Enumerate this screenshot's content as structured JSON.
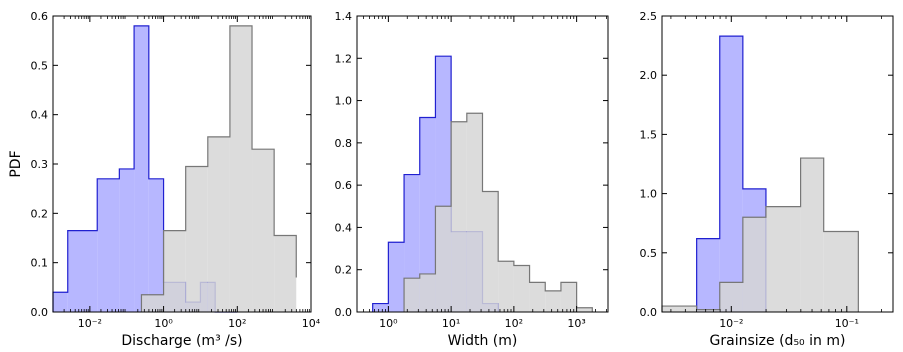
{
  "chart_data": [
    {
      "type": "histogram",
      "ylabel": "PDF",
      "xlabel": "Discharge (m³ /s)",
      "xscale": "log",
      "xlim_exp": [
        -3,
        4
      ],
      "ylim": [
        0,
        0.6
      ],
      "yticks": [
        0.0,
        0.1,
        0.2,
        0.3,
        0.4,
        0.5,
        0.6
      ],
      "ytick_labels": [
        "0.0",
        "0.1",
        "0.2",
        "0.3",
        "0.4",
        "0.5",
        "0.6"
      ],
      "xticks_exp": [
        -2,
        0,
        2,
        4
      ],
      "xtick_labels": [
        "10⁻²",
        "10⁰",
        "10²",
        "10⁴"
      ],
      "series": [
        {
          "color": "#2020d0",
          "fill": "#aaaaff",
          "edges_exp": [
            -3.0,
            -2.6,
            -1.8,
            -1.2,
            -0.8,
            -0.4,
            0.0,
            0.6,
            1.0,
            1.4,
            2.0
          ],
          "values": [
            0.04,
            0.165,
            0.27,
            0.29,
            0.58,
            0.27,
            0.06,
            0.02,
            0.06,
            0.0
          ]
        },
        {
          "color": "#777777",
          "fill": "#d6d6d6",
          "edges_exp": [
            -0.6,
            0.0,
            0.6,
            1.2,
            1.8,
            2.4,
            3.0,
            3.6
          ],
          "values": [
            0.035,
            0.165,
            0.295,
            0.355,
            0.58,
            0.33,
            0.155,
            0.07
          ]
        }
      ]
    },
    {
      "type": "histogram",
      "ylabel": "",
      "xlabel": "Width (m)",
      "xscale": "log",
      "xlim_exp": [
        -0.5,
        3.5
      ],
      "ylim": [
        0,
        1.4
      ],
      "yticks": [
        0.0,
        0.2,
        0.4,
        0.6,
        0.8,
        1.0,
        1.2,
        1.4
      ],
      "ytick_labels": [
        "0.0",
        "0.2",
        "0.4",
        "0.6",
        "0.8",
        "1.0",
        "1.2",
        "1.4"
      ],
      "xticks_exp": [
        0,
        1,
        2,
        3
      ],
      "xtick_labels": [
        "10⁰",
        "10¹",
        "10²",
        "10³"
      ],
      "series": [
        {
          "color": "#2020d0",
          "fill": "#aaaaff",
          "edges_exp": [
            -0.25,
            0.0,
            0.25,
            0.5,
            0.75,
            1.0,
            1.5,
            1.75
          ],
          "values": [
            0.04,
            0.33,
            0.65,
            0.92,
            1.21,
            0.38,
            0.04
          ]
        },
        {
          "color": "#777777",
          "fill": "#d6d6d6",
          "edges_exp": [
            0.25,
            0.5,
            0.75,
            1.0,
            1.25,
            1.5,
            1.75,
            2.0,
            2.25,
            2.5,
            2.75,
            3.0,
            3.25
          ],
          "values": [
            0.16,
            0.18,
            0.5,
            0.9,
            0.94,
            0.57,
            0.24,
            0.22,
            0.14,
            0.1,
            0.14,
            0.02
          ]
        }
      ]
    },
    {
      "type": "histogram",
      "ylabel": "",
      "xlabel": "Grainsize (d₅₀ in m)",
      "xscale": "log",
      "xlim_exp": [
        -2.6,
        -0.6
      ],
      "ylim": [
        0,
        2.5
      ],
      "yticks": [
        0.0,
        0.5,
        1.0,
        1.5,
        2.0,
        2.5
      ],
      "ytick_labels": [
        "0.0",
        "0.5",
        "1.0",
        "1.5",
        "2.0",
        "2.5"
      ],
      "xticks_exp": [
        -2,
        -1
      ],
      "xtick_labels": [
        "10⁻²",
        "10⁻¹"
      ],
      "series": [
        {
          "color": "#2020d0",
          "fill": "#aaaaff",
          "edges_exp": [
            -2.3,
            -2.1,
            -1.9,
            -1.7
          ],
          "values": [
            0.62,
            2.33,
            1.04
          ]
        },
        {
          "color": "#777777",
          "fill": "#d6d6d6",
          "edges_exp": [
            -2.6,
            -2.3,
            -2.1,
            -1.9,
            -1.7,
            -1.4,
            -1.2,
            -0.9
          ],
          "values": [
            0.05,
            0.02,
            0.25,
            0.8,
            0.89,
            1.3,
            0.68
          ]
        }
      ]
    }
  ]
}
